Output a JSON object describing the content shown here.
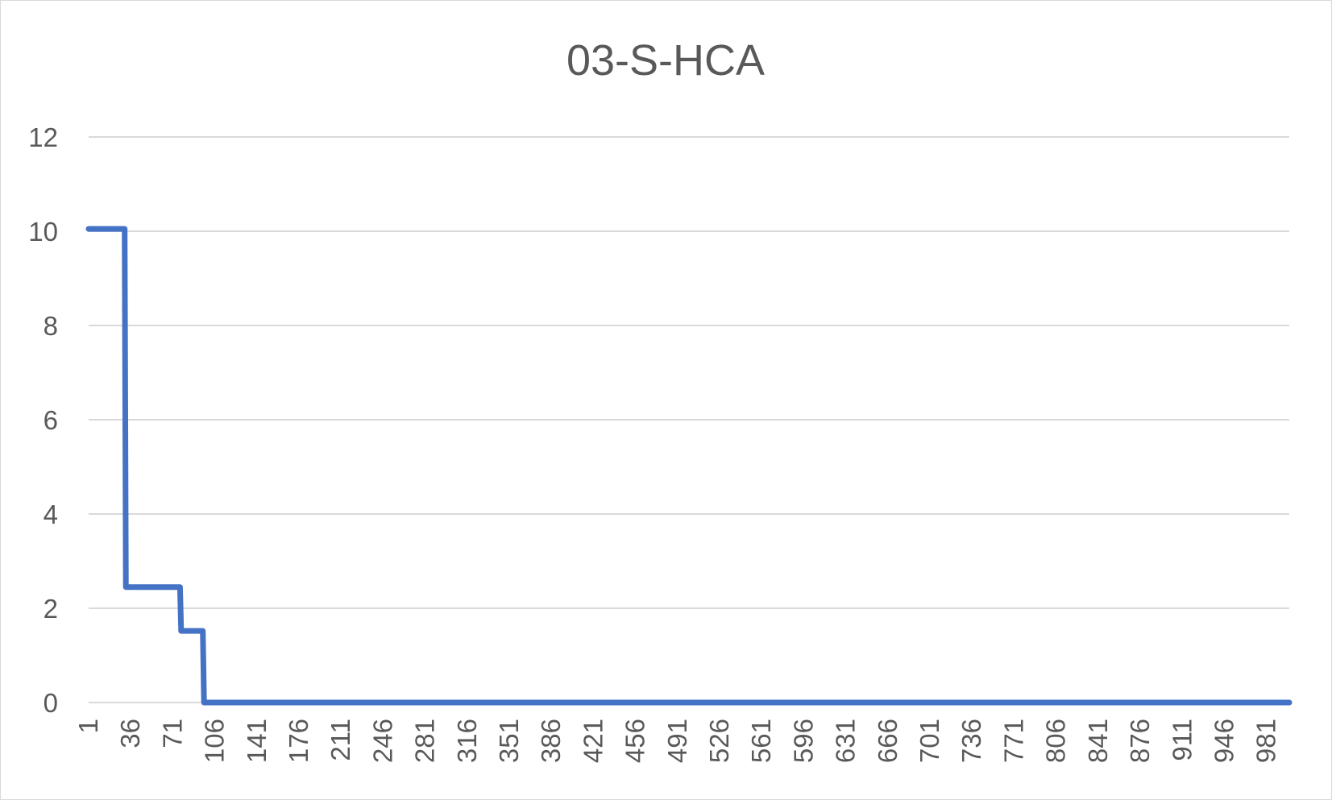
{
  "chart_data": {
    "type": "line",
    "title": "03-S-HCA",
    "xlabel": "",
    "ylabel": "",
    "x_tick_labels": [
      "1",
      "36",
      "71",
      "106",
      "141",
      "176",
      "211",
      "246",
      "281",
      "316",
      "351",
      "386",
      "421",
      "456",
      "491",
      "526",
      "561",
      "596",
      "631",
      "666",
      "701",
      "736",
      "771",
      "806",
      "841",
      "876",
      "911",
      "946",
      "981"
    ],
    "x_range": [
      1,
      1000
    ],
    "ylim": [
      0,
      12
    ],
    "y_ticks": [
      "0",
      "2",
      "4",
      "6",
      "8",
      "10",
      "12"
    ],
    "grid": true,
    "legend": "none",
    "series": [
      {
        "color": "#4472c4",
        "x": [
          1,
          31,
          32,
          77,
          78,
          96,
          97,
          1000
        ],
        "y": [
          10.05,
          10.05,
          2.45,
          2.45,
          1.52,
          1.52,
          0,
          0
        ]
      }
    ]
  }
}
